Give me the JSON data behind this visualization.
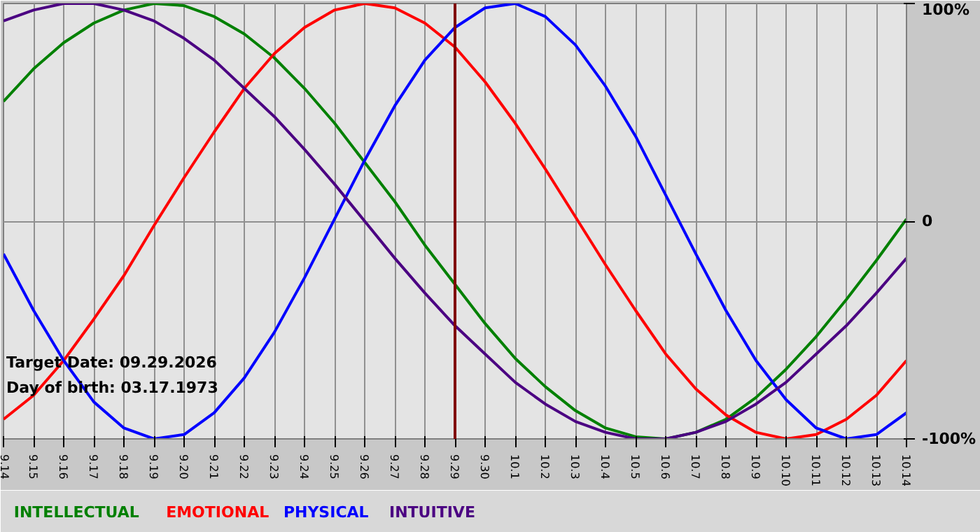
{
  "chart_data": {
    "type": "line",
    "categories": [
      "9.14",
      "9.15",
      "9.16",
      "9.17",
      "9.18",
      "9.19",
      "9.20",
      "9.21",
      "9.22",
      "9.23",
      "9.24",
      "9.25",
      "9.26",
      "9.27",
      "9.28",
      "9.29",
      "9.30",
      "10.1",
      "10.2",
      "10.3",
      "10.4",
      "10.5",
      "10.6",
      "10.7",
      "10.8",
      "10.9",
      "10.10",
      "10.11",
      "10.12",
      "10.13",
      "10.14"
    ],
    "series": [
      {
        "name": "INTELLECTUAL",
        "color": "#008000",
        "values": [
          55,
          70,
          82,
          91,
          97,
          100,
          99,
          94,
          86,
          75,
          61,
          45,
          27,
          9,
          -11,
          -29,
          -47,
          -63,
          -76,
          -87,
          -95,
          -99,
          -100,
          -97,
          -91,
          -81,
          -68,
          -53,
          -36,
          -18,
          1
        ]
      },
      {
        "name": "EMOTIONAL",
        "color": "#ff0000",
        "values": [
          -91,
          -80,
          -64,
          -45,
          -25,
          -2,
          20,
          41,
          61,
          77,
          89,
          97,
          100,
          98,
          91,
          80,
          64,
          45,
          24,
          2,
          -20,
          -41,
          -61,
          -77,
          -89,
          -97,
          -100,
          -98,
          -91,
          -80,
          -64
        ]
      },
      {
        "name": "PHYSICAL",
        "color": "#0000ff",
        "values": [
          -15,
          -41,
          -64,
          -83,
          -95,
          -100,
          -98,
          -88,
          -72,
          -51,
          -26,
          1,
          28,
          53,
          74,
          89,
          98,
          100,
          94,
          81,
          62,
          39,
          12,
          -15,
          -41,
          -64,
          -82,
          -95,
          -100,
          -98,
          -88
        ]
      },
      {
        "name": "INTUITIVE",
        "color": "#4b0082",
        "values": [
          92,
          97,
          100,
          100,
          97,
          92,
          84,
          74,
          61,
          48,
          33,
          17,
          0,
          -17,
          -33,
          -48,
          -61,
          -74,
          -84,
          -92,
          -97,
          -100,
          -100,
          -97,
          -92,
          -84,
          -74,
          -61,
          -48,
          -33,
          -17
        ]
      }
    ],
    "ylim": [
      -100,
      100
    ],
    "yticks": [
      {
        "value": 100,
        "label": "100%"
      },
      0,
      {
        "value": -100,
        "label": "-100%"
      }
    ],
    "ref_lines": [
      {
        "axis": "x",
        "value": "9.29",
        "color": "#800000"
      }
    ],
    "annotations": [
      "Target Date: 09.29.2026",
      "Day of birth: 03.17.1973"
    ],
    "grid": true,
    "legend": "bottom"
  }
}
